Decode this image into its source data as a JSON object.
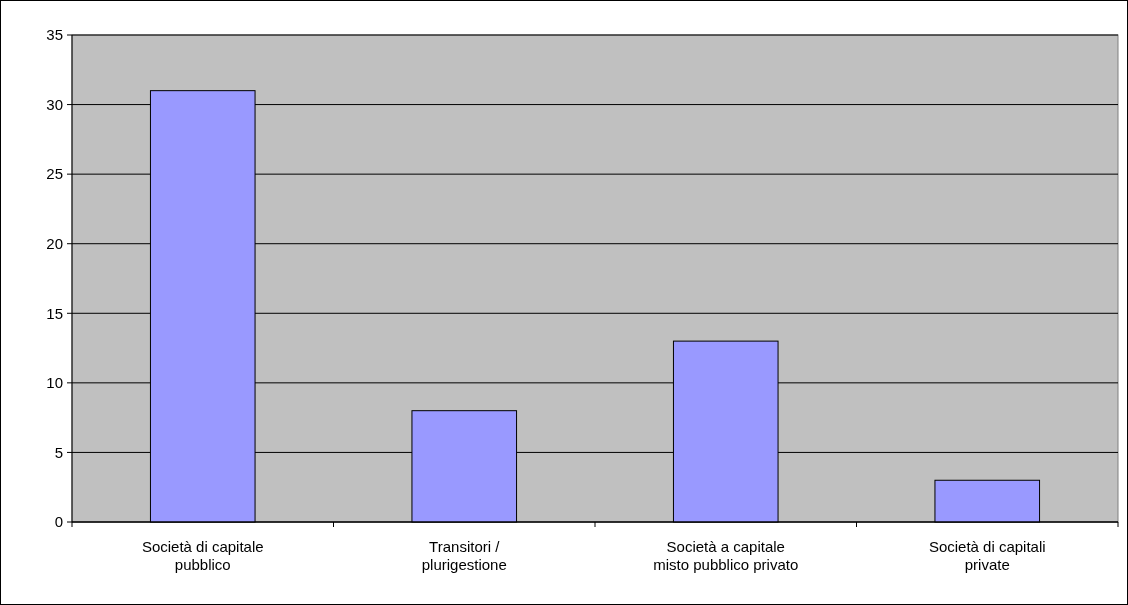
{
  "chart_data": {
    "type": "bar",
    "categories": [
      "Società di capitale pubblico",
      "Transitori / plurigestione",
      "Società a capitale misto pubblico privato",
      "Società di capitali private"
    ],
    "values": [
      31,
      8,
      13,
      3
    ],
    "color": "#9999ff",
    "ylim": [
      0,
      35
    ],
    "yticks": [
      0,
      5,
      10,
      15,
      20,
      25,
      30,
      35
    ],
    "grid": "y"
  }
}
